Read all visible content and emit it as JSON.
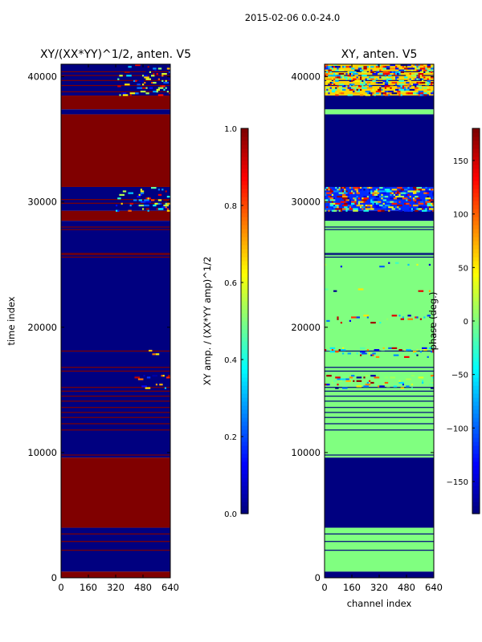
{
  "suptitle": "2015-02-06 0.0-24.0",
  "chart_data": [
    {
      "type": "heatmap",
      "title": "XY/(XX*YY)^1/2, anten. V5",
      "xlabel": "",
      "ylabel": "time index",
      "xlim": [
        0,
        640
      ],
      "ylim": [
        0,
        41000
      ],
      "xticks": [
        0,
        160,
        320,
        480,
        640
      ],
      "xtick_labels": [
        "0",
        "160",
        "320",
        "480",
        "640"
      ],
      "yticks": [
        0,
        10000,
        20000,
        30000,
        40000
      ],
      "ytick_labels": [
        "0",
        "10000",
        "20000",
        "30000",
        "40000"
      ],
      "colormap": "jet",
      "colorbar": {
        "label": "XY amp. / (XX*YY amp)^1/2",
        "range": [
          0.0,
          1.0
        ],
        "ticks": [
          0.0,
          0.2,
          0.4,
          0.6,
          0.8,
          1.0
        ],
        "tick_labels": [
          "0.0",
          "0.2",
          "0.4",
          "0.6",
          "0.8",
          "1.0"
        ]
      },
      "bands": [
        {
          "y0": 0,
          "y1": 500,
          "value": 1.0
        },
        {
          "y0": 500,
          "y1": 4000,
          "value": 0.0
        },
        {
          "y0": 4000,
          "y1": 9600,
          "value": 1.0
        },
        {
          "y0": 9600,
          "y1": 18000,
          "value": 0.0
        },
        {
          "y0": 18000,
          "y1": 28500,
          "value": 0.0
        },
        {
          "y0": 28500,
          "y1": 29300,
          "value": 1.0
        },
        {
          "y0": 29300,
          "y1": 31200,
          "value": 0.0
        },
        {
          "y0": 31200,
          "y1": 37000,
          "value": 1.0
        },
        {
          "y0": 37000,
          "y1": 37400,
          "value": 0.0
        },
        {
          "y0": 37400,
          "y1": 38500,
          "value": 1.0
        },
        {
          "y0": 38500,
          "y1": 41000,
          "value": 0.0
        }
      ],
      "lines": {
        "value": 1.0,
        "y": [
          2200,
          2900,
          3500,
          9800,
          11800,
          12300,
          12800,
          13200,
          13600,
          14100,
          14500,
          14900,
          15200,
          16500,
          16800,
          18100,
          25600,
          25800,
          25900,
          27800,
          28000,
          29900,
          30200,
          37700,
          37900,
          38800,
          39300,
          39700,
          40100,
          40400
        ]
      },
      "noise_regions": [
        {
          "y0": 29300,
          "y1": 31200,
          "x0": 320,
          "x1": 640,
          "density": 0.12
        },
        {
          "y0": 38500,
          "y1": 41000,
          "x0": 320,
          "x1": 640,
          "density": 0.1
        },
        {
          "y0": 15200,
          "y1": 16200,
          "x0": 420,
          "x1": 640,
          "density": 0.06
        },
        {
          "y0": 17800,
          "y1": 18200,
          "x0": 420,
          "x1": 640,
          "density": 0.08
        }
      ]
    },
    {
      "type": "heatmap",
      "title": "XY, anten. V5",
      "xlabel": "channel index",
      "ylabel": "",
      "xlim": [
        0,
        640
      ],
      "ylim": [
        0,
        41000
      ],
      "xticks": [
        0,
        160,
        320,
        480,
        640
      ],
      "xtick_labels": [
        "0",
        "160",
        "320",
        "480",
        "640"
      ],
      "yticks": [
        0,
        10000,
        20000,
        30000,
        40000
      ],
      "ytick_labels": [
        "0",
        "10000",
        "20000",
        "30000",
        "40000"
      ],
      "colormap": "jet",
      "colorbar": {
        "label": "phase (deg.)",
        "range": [
          -180,
          180
        ],
        "ticks": [
          -150,
          -100,
          -50,
          0,
          50,
          100,
          150
        ],
        "tick_labels": [
          "−150",
          "−100",
          "−50",
          "0",
          "50",
          "100",
          "150"
        ]
      },
      "bands": [
        {
          "y0": 0,
          "y1": 500,
          "value": -180
        },
        {
          "y0": 500,
          "y1": 4000,
          "value": 0
        },
        {
          "y0": 4000,
          "y1": 9600,
          "value": -180
        },
        {
          "y0": 9600,
          "y1": 28500,
          "value": 0
        },
        {
          "y0": 28500,
          "y1": 29300,
          "value": -180
        },
        {
          "y0": 29300,
          "y1": 31200,
          "value": -120
        },
        {
          "y0": 31200,
          "y1": 37000,
          "value": -180
        },
        {
          "y0": 37000,
          "y1": 37400,
          "value": 0
        },
        {
          "y0": 37400,
          "y1": 38500,
          "value": -180
        },
        {
          "y0": 38500,
          "y1": 41000,
          "value": 60
        }
      ],
      "lines": {
        "value": -180,
        "y": [
          2200,
          2900,
          3500,
          9800,
          11800,
          12300,
          12800,
          13200,
          13600,
          14100,
          14500,
          14900,
          15200,
          16500,
          16800,
          18100,
          25600,
          25800,
          25900,
          27800,
          28000,
          37700,
          37900,
          39300,
          39700,
          40100,
          40400
        ]
      },
      "noise_regions": [
        {
          "y0": 29300,
          "y1": 31200,
          "x0": 0,
          "x1": 640,
          "density": 0.35
        },
        {
          "y0": 38500,
          "y1": 41000,
          "x0": 0,
          "x1": 640,
          "density": 0.3
        },
        {
          "y0": 15200,
          "y1": 16200,
          "x0": 0,
          "x1": 640,
          "density": 0.1
        },
        {
          "y0": 17600,
          "y1": 18400,
          "x0": 0,
          "x1": 640,
          "density": 0.12
        },
        {
          "y0": 20300,
          "y1": 21000,
          "x0": 0,
          "x1": 640,
          "density": 0.05
        },
        {
          "y0": 22800,
          "y1": 23100,
          "x0": 0,
          "x1": 640,
          "density": 0.05
        },
        {
          "y0": 24800,
          "y1": 25200,
          "x0": 0,
          "x1": 640,
          "density": 0.05
        }
      ]
    }
  ]
}
